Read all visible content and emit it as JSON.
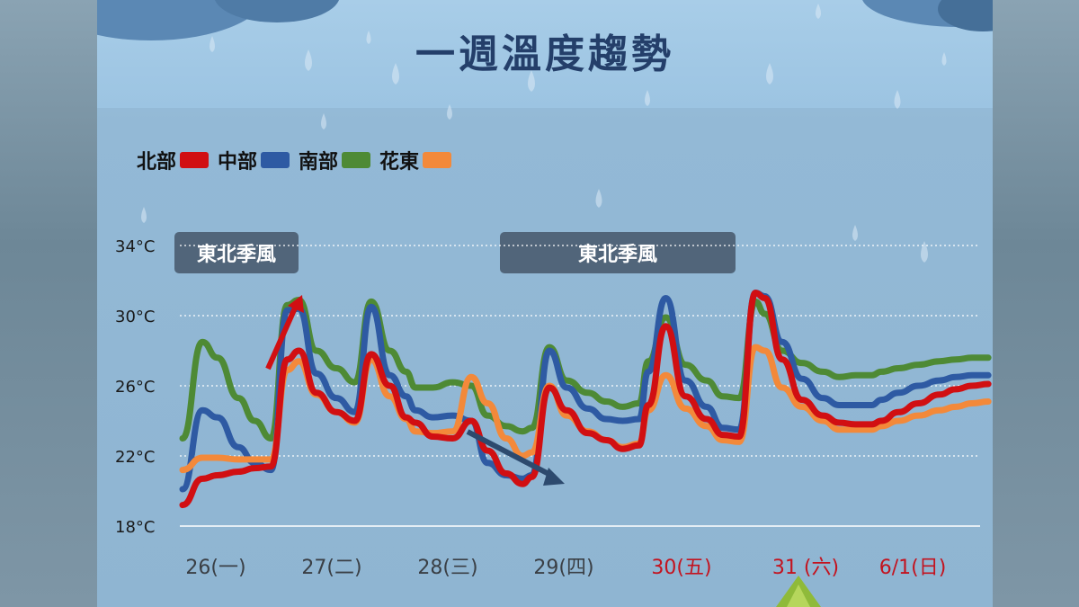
{
  "title": "一週溫度趨勢",
  "legend": [
    {
      "label": "北部",
      "color": "#d10f12"
    },
    {
      "label": "中部",
      "color": "#2e5aa3"
    },
    {
      "label": "南部",
      "color": "#4e8a35"
    },
    {
      "label": "花東",
      "color": "#f3893a"
    }
  ],
  "annotations": [
    "東北季風",
    "東北季風"
  ],
  "chart_data": {
    "type": "line",
    "title": "一週溫度趨勢",
    "xlabel": "",
    "ylabel": "",
    "y_ticks": [
      "34°C",
      "30°C",
      "26°C",
      "22°C",
      "18°C"
    ],
    "ylim": [
      18,
      34
    ],
    "grid": true,
    "legend_position": "top-left",
    "x_categories": [
      "26(一)",
      "27(二)",
      "28(三)",
      "29(四)",
      "30(五)",
      "31 (六)",
      "6/1(日)"
    ],
    "weekend_highlight_color": "#c3131f",
    "x": [
      0,
      0.17,
      0.3,
      0.48,
      0.62,
      0.76,
      0.9,
      1.0,
      1.15,
      1.32,
      1.48,
      1.62,
      1.78,
      1.92,
      2.0,
      2.15,
      2.32,
      2.48,
      2.62,
      2.78,
      2.92,
      3.0,
      3.15,
      3.3,
      3.48,
      3.64,
      3.78,
      3.92,
      4.0,
      4.15,
      4.32,
      4.5,
      4.64,
      4.78,
      4.92,
      5.0,
      5.15,
      5.32,
      5.5,
      5.64,
      5.78,
      5.92,
      6.0,
      6.15,
      6.32,
      6.5,
      6.64,
      6.78,
      6.92
    ],
    "series": [
      {
        "name": "北部",
        "color": "#d10f12",
        "values": [
          19.2,
          20.7,
          20.9,
          21.1,
          21.3,
          21.4,
          27.5,
          28.0,
          25.6,
          24.5,
          24.0,
          27.8,
          26.0,
          24.2,
          23.9,
          23.1,
          23.0,
          24.0,
          22.3,
          21.0,
          20.4,
          20.8,
          25.9,
          24.6,
          23.3,
          22.9,
          22.4,
          22.6,
          24.9,
          29.4,
          25.4,
          24.1,
          23.2,
          23.1,
          31.3,
          31.0,
          27.5,
          25.2,
          24.3,
          23.9,
          23.8,
          23.8,
          24.0,
          24.5,
          25.0,
          25.5,
          25.8,
          26.0,
          26.1
        ]
      },
      {
        "name": "中部",
        "color": "#2e5aa3",
        "values": [
          20.1,
          24.6,
          24.2,
          22.5,
          21.6,
          21.2,
          30.3,
          30.4,
          26.7,
          25.3,
          24.5,
          30.5,
          26.6,
          25.4,
          24.6,
          24.2,
          24.3,
          24.0,
          21.6,
          20.9,
          20.7,
          20.9,
          28.0,
          25.9,
          24.7,
          24.1,
          24.0,
          24.1,
          26.8,
          31.0,
          26.3,
          24.8,
          23.6,
          23.5,
          31.3,
          31.1,
          28.5,
          26.4,
          25.3,
          24.9,
          24.9,
          24.9,
          25.2,
          25.6,
          26.0,
          26.3,
          26.5,
          26.6,
          26.6
        ]
      },
      {
        "name": "南部",
        "color": "#4e8a35",
        "values": [
          23.0,
          28.5,
          27.6,
          25.3,
          24.0,
          23.0,
          30.6,
          30.9,
          28.0,
          27.0,
          26.2,
          30.8,
          28.0,
          26.8,
          25.9,
          25.9,
          26.2,
          26.0,
          24.3,
          23.7,
          23.4,
          23.6,
          28.2,
          26.3,
          25.6,
          25.1,
          24.8,
          25.0,
          27.4,
          29.9,
          27.2,
          26.3,
          25.4,
          25.3,
          30.8,
          30.1,
          28.0,
          27.3,
          26.8,
          26.5,
          26.6,
          26.6,
          26.8,
          27.0,
          27.2,
          27.4,
          27.5,
          27.6,
          27.6
        ]
      },
      {
        "name": "花東",
        "color": "#f3893a",
        "values": [
          21.2,
          21.9,
          21.9,
          21.8,
          21.8,
          21.8,
          26.9,
          27.4,
          25.5,
          24.5,
          23.9,
          27.5,
          25.4,
          24.1,
          23.4,
          23.3,
          23.4,
          26.5,
          25.0,
          23.0,
          22.0,
          22.2,
          26.0,
          24.3,
          23.4,
          22.9,
          22.5,
          22.7,
          24.6,
          26.6,
          24.7,
          23.7,
          22.9,
          22.8,
          28.2,
          28.0,
          25.9,
          24.8,
          24.0,
          23.5,
          23.5,
          23.5,
          23.7,
          24.0,
          24.3,
          24.6,
          24.8,
          25.0,
          25.1
        ]
      }
    ]
  }
}
